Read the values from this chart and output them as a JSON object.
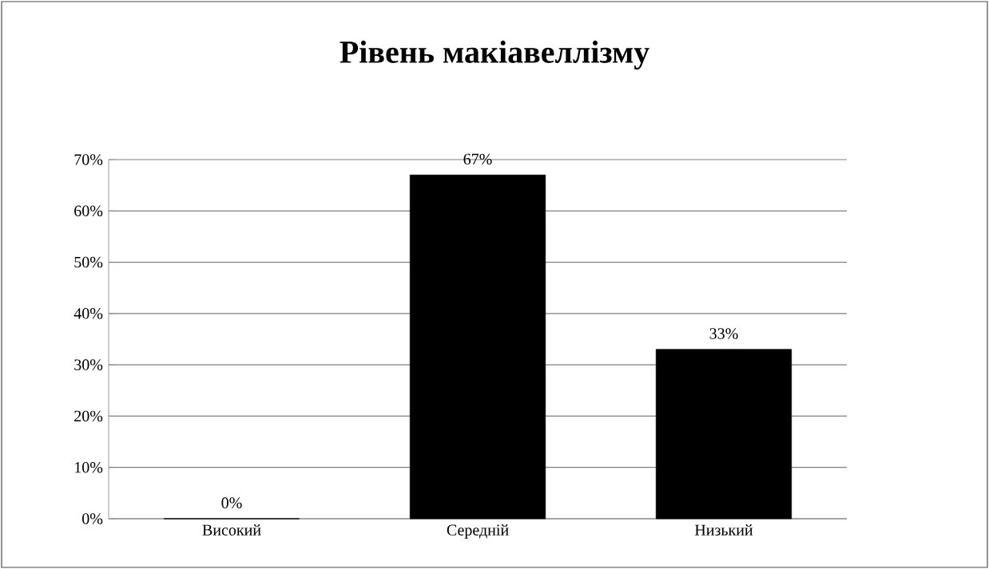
{
  "chart_data": {
    "type": "bar",
    "title": "Рівень макіавеллізму",
    "categories": [
      "Високий",
      "Середній",
      "Низький"
    ],
    "values": [
      0,
      67,
      33
    ],
    "value_labels": [
      "0%",
      "67%",
      "33%"
    ],
    "color": "#000000",
    "ylim": [
      0,
      70
    ],
    "yticks": [
      {
        "value": 0,
        "label": "0%"
      },
      {
        "value": 10,
        "label": "10%"
      },
      {
        "value": 20,
        "label": "20%"
      },
      {
        "value": 30,
        "label": "30%"
      },
      {
        "value": 40,
        "label": "40%"
      },
      {
        "value": 50,
        "label": "50%"
      },
      {
        "value": 60,
        "label": "60%"
      },
      {
        "value": 70,
        "label": "70%"
      }
    ],
    "grid": "y"
  }
}
